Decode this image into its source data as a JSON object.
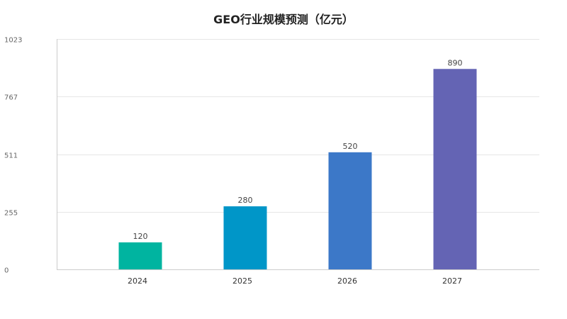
{
  "chart_data": {
    "type": "bar",
    "title": "GEO行业规模预测（亿元）",
    "categories": [
      "2024",
      "2025",
      "2026",
      "2027"
    ],
    "values": [
      120,
      280,
      520,
      890
    ],
    "bar_colors": [
      "#00b4a0",
      "#0096c8",
      "#3c78c8",
      "#6464b4"
    ],
    "y_ticks": [
      0,
      255,
      511,
      767,
      1023
    ],
    "ylim": [
      0,
      1023
    ],
    "grid": true,
    "xlabel": "",
    "ylabel": ""
  }
}
